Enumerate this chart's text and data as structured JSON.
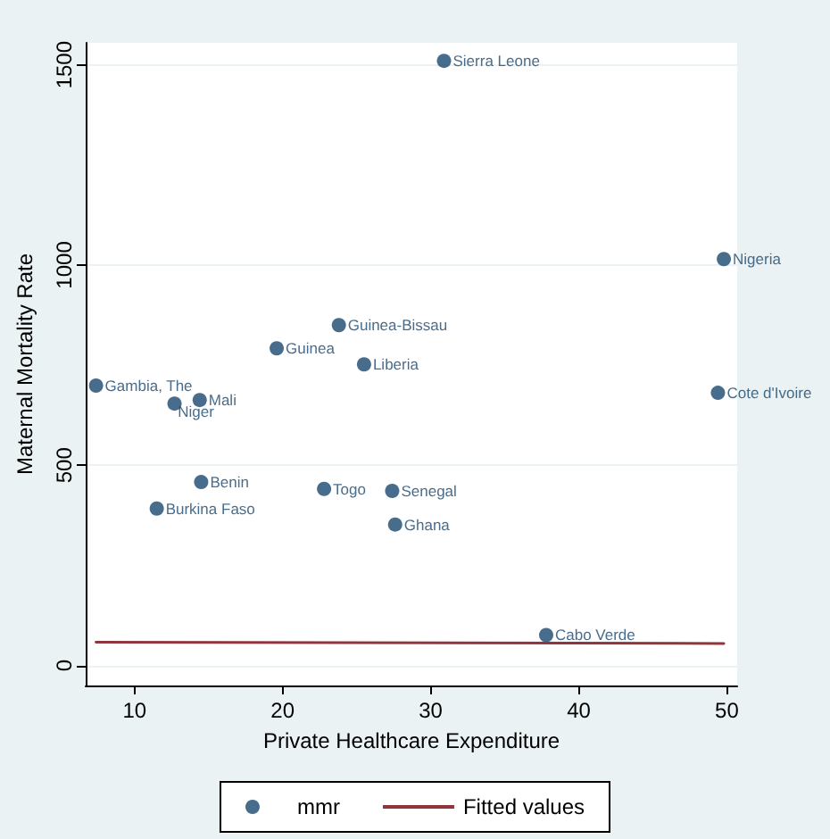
{
  "chart_data": {
    "type": "scatter",
    "xlabel": "Private Healthcare Expenditure",
    "ylabel": "Maternal Mortality Rate",
    "xlim": [
      6.7,
      50.7
    ],
    "xticks": [
      10,
      20,
      30,
      40,
      50
    ],
    "ylim": [
      -50,
      1555
    ],
    "yticks": [
      0,
      500,
      1000,
      1500
    ],
    "grid": "y",
    "legend": "bottom",
    "marker": "circle",
    "series": [
      {
        "name": "mmr",
        "color": "#1a476f",
        "x": [
          30.9,
          49.8,
          49.4,
          23.8,
          19.6,
          25.5,
          7.4,
          12.7,
          14.4,
          14.5,
          11.5,
          22.8,
          27.4,
          27.6,
          37.8
        ],
        "values": [
          1510,
          1015,
          681,
          850,
          792,
          752,
          699,
          654,
          663,
          458,
          392,
          441,
          436,
          352,
          76
        ],
        "value_labels": [
          "Sierra Leone",
          "Nigeria",
          "Cote d'Ivoire",
          "Guinea-Bissau",
          "Guinea",
          "Liberia",
          "Gambia, The",
          "Niger",
          "Mali",
          "Benin",
          "Burkina Faso",
          "Togo",
          "Senegal",
          "Ghana",
          "Cabo Verde"
        ]
      },
      {
        "name": "Fitted values",
        "type": "line",
        "color": "#90353b",
        "x": [
          7.4,
          49.8
        ],
        "values": [
          58,
          55
        ],
        "line_style": "solid",
        "marker": "none"
      }
    ]
  }
}
